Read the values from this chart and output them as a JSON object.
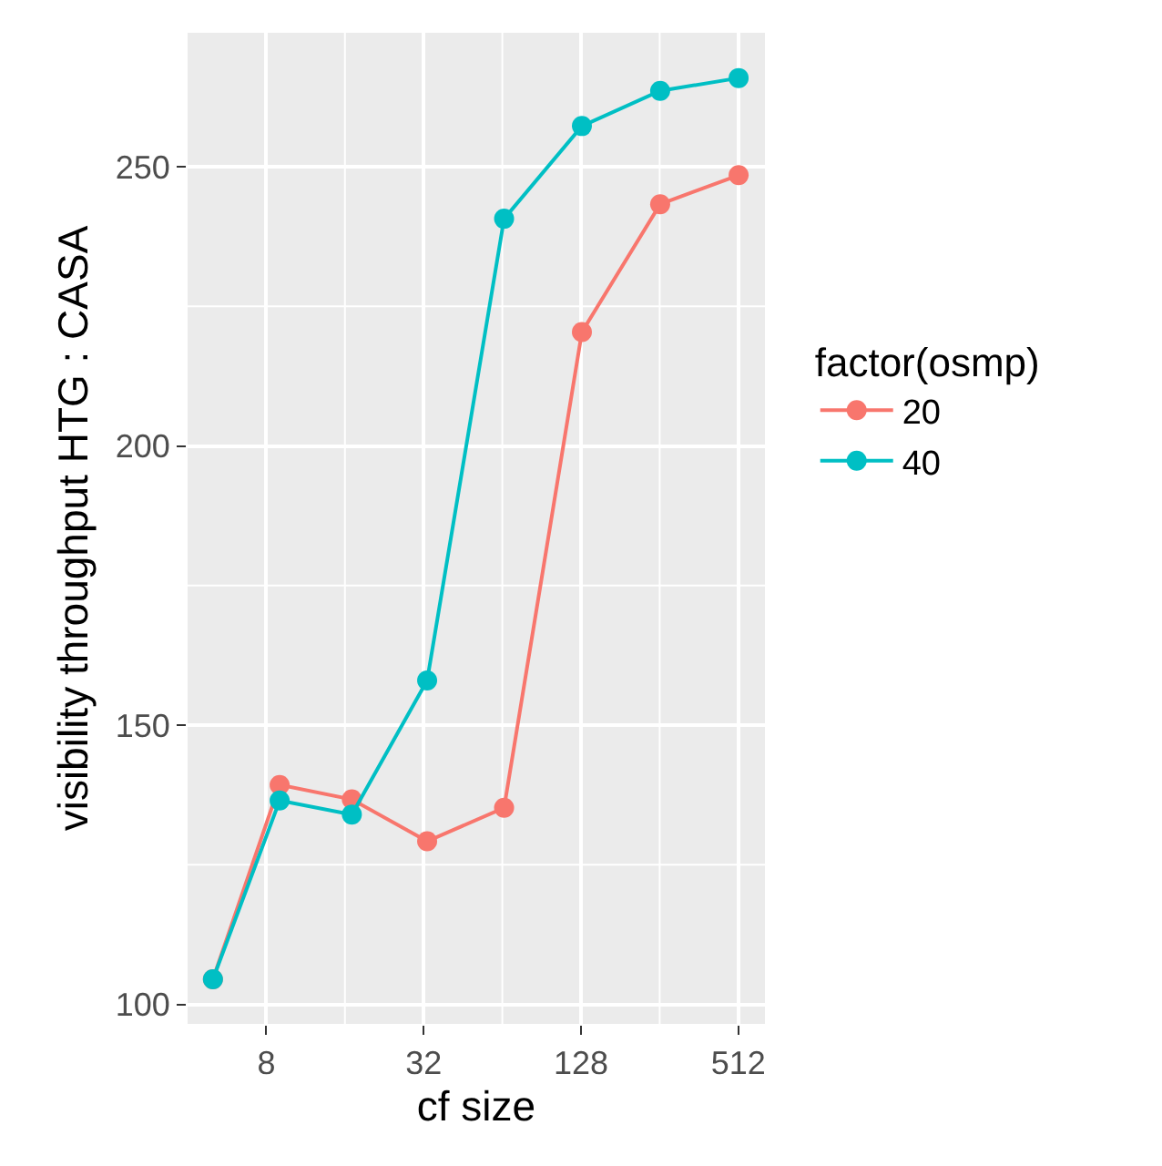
{
  "chart_data": {
    "type": "line",
    "xlabel": "cf size",
    "ylabel": "visibility throughput HTG : CASA",
    "legend_title": "factor(osmp)",
    "log": "x",
    "x": [
      5,
      9,
      17,
      33,
      65,
      129,
      257,
      513
    ],
    "series": [
      {
        "name": "20",
        "color": "#f8766d",
        "values": [
          104.5,
          139.3,
          136.7,
          129.2,
          135.2,
          220.4,
          243.3,
          248.5
        ]
      },
      {
        "name": "40",
        "color": "#00bfc4",
        "values": [
          104.5,
          136.5,
          134,
          158,
          240.7,
          257.3,
          263.6,
          265.9
        ]
      }
    ],
    "xlim": [
      4,
      647
    ],
    "xticks": [
      8,
      {
        "value": 16,
        "label": null
      },
      32,
      {
        "value": 64,
        "label": null
      },
      128,
      {
        "value": 256,
        "label": null
      },
      512
    ],
    "ylim": [
      96.5,
      274
    ],
    "yticks": [
      100,
      {
        "value": 125,
        "label": null
      },
      150,
      {
        "value": 175,
        "label": null
      },
      200,
      {
        "value": 225,
        "label": null
      },
      250
    ],
    "grid": true,
    "legend": "right",
    "marker": "circle",
    "line_style": "solid"
  }
}
